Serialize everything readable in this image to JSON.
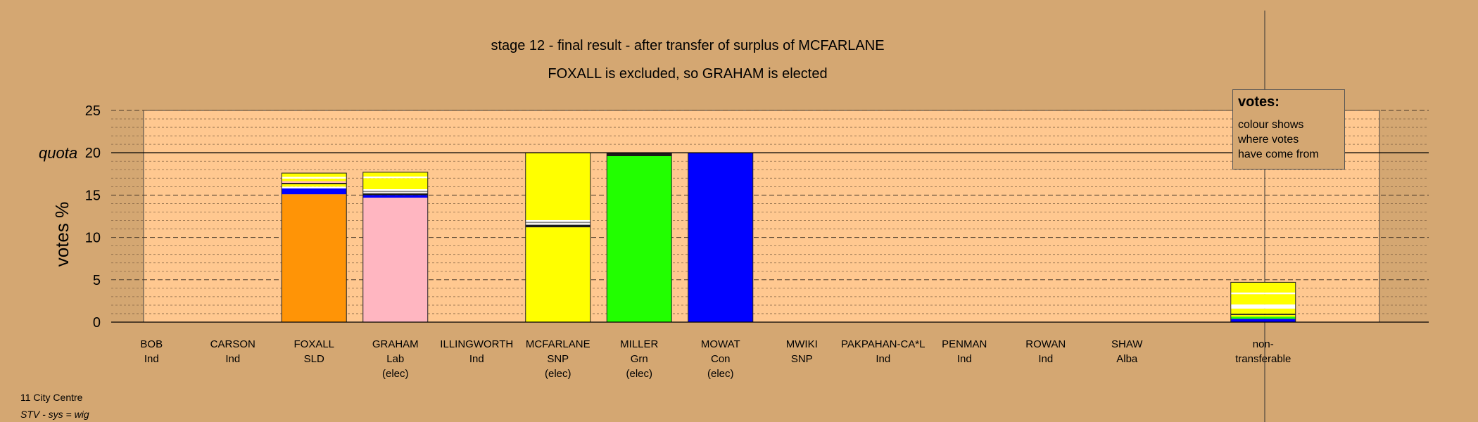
{
  "chart_data": {
    "type": "bar",
    "stacked": true,
    "title": "stage 12 - final result - after transfer of surplus of MCFARLANE",
    "subtitle": "FOXALL is excluded, so GRAHAM is elected",
    "ylabel": "votes %",
    "quota_label": "quota",
    "quota": 20,
    "ylim": [
      0,
      25
    ],
    "yticks": [
      0,
      5,
      10,
      15,
      20,
      25
    ],
    "grid": true,
    "legend_placement": "top-right",
    "categories": [
      {
        "name": "BOB",
        "party": "Ind",
        "note": ""
      },
      {
        "name": "CARSON",
        "party": "Ind",
        "note": ""
      },
      {
        "name": "FOXALL",
        "party": "SLD",
        "note": ""
      },
      {
        "name": "GRAHAM",
        "party": "Lab",
        "note": "(elec)"
      },
      {
        "name": "ILLINGWORTH",
        "party": "Ind",
        "note": ""
      },
      {
        "name": "MCFARLANE",
        "party": "SNP",
        "note": "(elec)"
      },
      {
        "name": "MILLER",
        "party": "Grn",
        "note": "(elec)"
      },
      {
        "name": "MOWAT",
        "party": "Con",
        "note": "(elec)"
      },
      {
        "name": "MWIKI",
        "party": "SNP",
        "note": ""
      },
      {
        "name": "PAKPAHAN-CA*L",
        "party": "Ind",
        "note": ""
      },
      {
        "name": "PENMAN",
        "party": "Ind",
        "note": ""
      },
      {
        "name": "ROWAN",
        "party": "Ind",
        "note": ""
      },
      {
        "name": "SHAW",
        "party": "Alba",
        "note": ""
      },
      {
        "name": "non-",
        "party": "transferable",
        "note": ""
      }
    ],
    "stacks": [
      [],
      [],
      [
        {
          "value": 15.1,
          "color": "#ff9406"
        },
        {
          "value": 0.7,
          "color": "#0000ff"
        },
        {
          "value": 0.2,
          "color": "#ffffff"
        },
        {
          "value": 0.3,
          "color": "#ffff00"
        },
        {
          "value": 0.15,
          "color": "#1a1a1a"
        },
        {
          "value": 0.2,
          "color": "#ffb6c1"
        },
        {
          "value": 0.3,
          "color": "#ffff00"
        },
        {
          "value": 0.2,
          "color": "#ffffff"
        },
        {
          "value": 0.45,
          "color": "#ffff00"
        }
      ],
      [
        {
          "value": 14.7,
          "color": "#ffb6c1"
        },
        {
          "value": 0.3,
          "color": "#0000ff"
        },
        {
          "value": 0.2,
          "color": "#1a1a1a"
        },
        {
          "value": 0.15,
          "color": "#ffffff"
        },
        {
          "value": 0.15,
          "color": "#888888"
        },
        {
          "value": 0.2,
          "color": "#ffffff"
        },
        {
          "value": 1.3,
          "color": "#ffff00"
        },
        {
          "value": 0.2,
          "color": "#ffffff"
        },
        {
          "value": 0.5,
          "color": "#ffff00"
        }
      ],
      [],
      [
        {
          "value": 11.2,
          "color": "#ffff00"
        },
        {
          "value": 0.3,
          "color": "#1a1a1a"
        },
        {
          "value": 0.2,
          "color": "#ffffff"
        },
        {
          "value": 0.15,
          "color": "#888888"
        },
        {
          "value": 0.2,
          "color": "#ffffff"
        },
        {
          "value": 7.95,
          "color": "#ffff00"
        }
      ],
      [
        {
          "value": 19.6,
          "color": "#22ff00"
        },
        {
          "value": 0.4,
          "color": "#1a1a1a"
        }
      ],
      [
        {
          "value": 20,
          "color": "#0000ff"
        }
      ],
      [],
      [],
      [],
      [],
      [],
      [
        {
          "value": 0.4,
          "color": "#0000ff"
        },
        {
          "value": 0.25,
          "color": "#22ff00"
        },
        {
          "value": 0.2,
          "color": "#ffff00"
        },
        {
          "value": 0.15,
          "color": "#1a1a1a"
        },
        {
          "value": 0.6,
          "color": "#ffff00"
        },
        {
          "value": 0.5,
          "color": "#ffffff"
        },
        {
          "value": 1.2,
          "color": "#ffff00"
        },
        {
          "value": 0.2,
          "color": "#ffffff"
        },
        {
          "value": 1.2,
          "color": "#ffff00"
        }
      ]
    ]
  },
  "legend": {
    "title": "votes:",
    "text": "colour shows\nwhere votes\nhave come from"
  },
  "footer": {
    "line1": "11 City Centre",
    "line2": "STV - sys = wig"
  },
  "colors": {
    "background": "#d4a772",
    "plot_background": "#ffc890",
    "axis": "#000000"
  }
}
